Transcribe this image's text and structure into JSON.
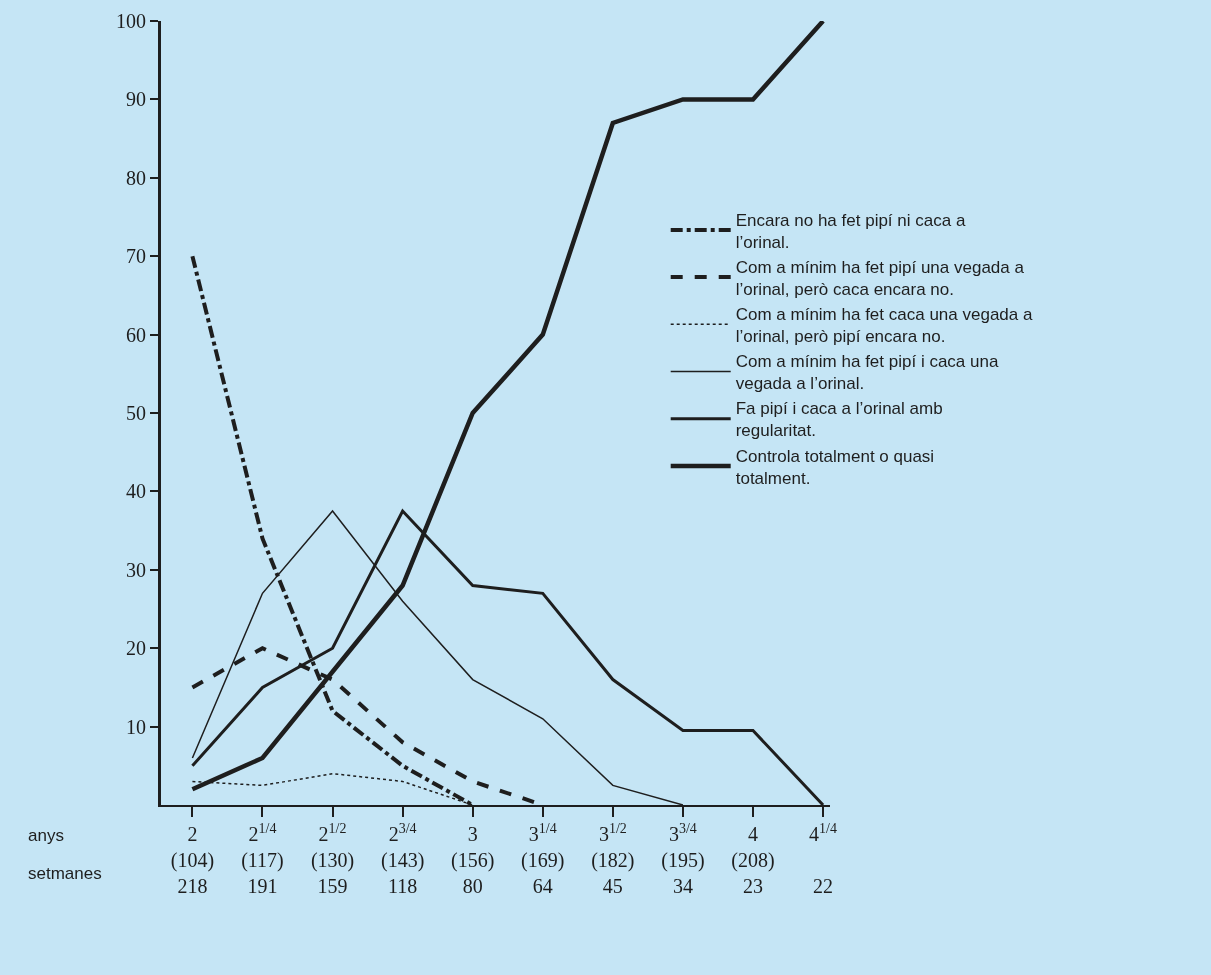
{
  "chart_data": {
    "type": "line",
    "categories": [
      "2\n(104)\n218",
      "2$^{1/4}$\n(117)\n191",
      "2$^{1/2}$\n(130)\n159",
      "2$^{3/4}$\n(143)\n118",
      "3\n(156)\n80",
      "3$^{1/4}$\n(169)\n64",
      "3$^{1/2}$\n(182)\n45",
      "3$^{3/4}$\n(195)\n34",
      "4\n(208)\n23",
      "4$^{1/4}$\n\n22"
    ],
    "annotations": [
      "anys",
      "setmanes"
    ],
    "ylim": [
      0,
      100
    ],
    "yticks": [
      10,
      20,
      30,
      40,
      50,
      60,
      70,
      80,
      90,
      100
    ],
    "grid": false,
    "legend": "right",
    "marker": "none",
    "series": [
      {
        "name": "Encara no ha fet pipí ni caca a l’orinal.",
        "color": "#1e1e1e",
        "line_style": "dashdot",
        "values": [
          70,
          34,
          12,
          5,
          0,
          null,
          null,
          null,
          null,
          null
        ]
      },
      {
        "name": "Com a mínim ha fet pipí una vegada a l’orinal, però caca encara no.",
        "color": "#1e1e1e",
        "line_style": "dashed",
        "values": [
          15,
          20,
          16,
          8,
          3,
          0,
          null,
          null,
          null,
          null
        ]
      },
      {
        "name": "Com a mínim ha fet caca una vegada a l’orinal, però pipí encara no.",
        "color": "#1e1e1e",
        "line_style": "dotted",
        "values": [
          3,
          2.5,
          4,
          3,
          0,
          null,
          null,
          null,
          null,
          null
        ]
      },
      {
        "name": "Com a mínim ha fet pipí i caca una vegada a l’orinal.",
        "color": "#1e1e1e",
        "line_style": "solid",
        "values": [
          6,
          27,
          37.5,
          26,
          16,
          11,
          2.5,
          0,
          null,
          null
        ]
      },
      {
        "name": "Fa pipí i caca a l’orinal amb regularitat.",
        "color": "#1e1e1e",
        "line_style": "solid",
        "values": [
          5,
          15,
          20,
          37.5,
          28,
          27,
          16,
          9.5,
          9.5,
          0
        ]
      },
      {
        "name": "Controla totalment o quasi totalment.",
        "color": "#1e1e1e",
        "line_style": "solid",
        "values": [
          2,
          6,
          17,
          28,
          50,
          60,
          87,
          90,
          90,
          100
        ]
      }
    ]
  }
}
